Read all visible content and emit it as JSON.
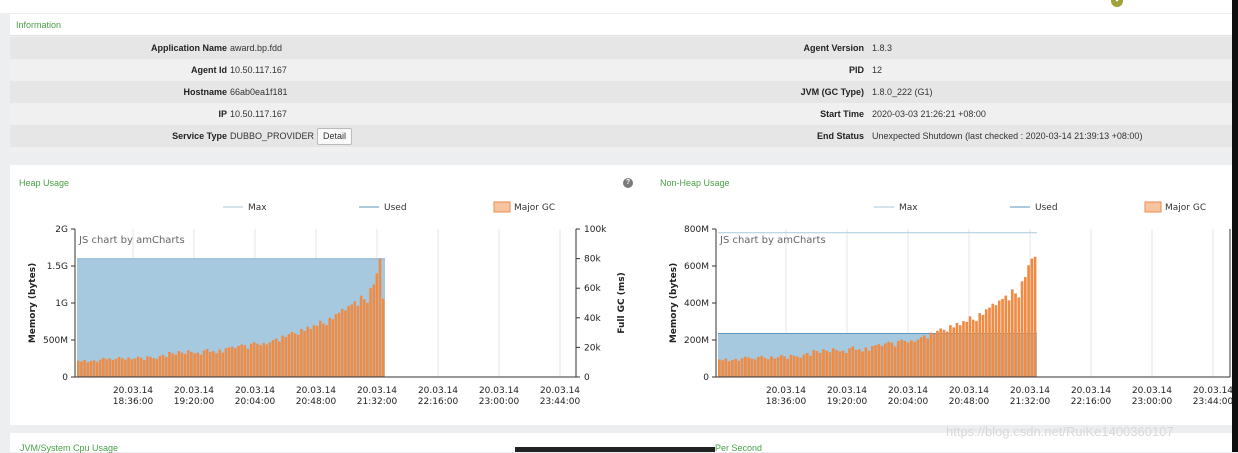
{
  "logo_glyph": "•",
  "information": {
    "title": "Information",
    "left": [
      {
        "label": "Application Name",
        "value": "award.bp.fdd"
      },
      {
        "label": "Agent Id",
        "value": "10.50.117.167"
      },
      {
        "label": "Hostname",
        "value": "66ab0ea1f181"
      },
      {
        "label": "IP",
        "value": "10.50.117.167"
      },
      {
        "label": "Service Type",
        "value": "DUBBO_PROVIDER"
      }
    ],
    "right": [
      {
        "label": "Agent Version",
        "value": "1.8.3"
      },
      {
        "label": "PID",
        "value": "12"
      },
      {
        "label": "JVM (GC Type)",
        "value": "1.8.0_222 (G1)"
      },
      {
        "label": "Start Time",
        "value": "2020-03-03 21:26:21 +08:00"
      },
      {
        "label": "End Status",
        "value": "Unexpected Shutdown (last checked : 2020-03-14 21:39:13 +08:00)"
      }
    ],
    "detail_button": "Detail"
  },
  "help_glyph": "?",
  "chart_data": [
    {
      "type": "area",
      "title": "Heap Usage",
      "watermark": "JS chart by amCharts",
      "legend": [
        "Max",
        "Used",
        "Major GC"
      ],
      "ylabel": "Memory (bytes)",
      "y2label": "Full GC (ms)",
      "yticks": [
        "0",
        "500M",
        "1G",
        "1.5G",
        "2G"
      ],
      "y2ticks": [
        "0",
        "20k",
        "40k",
        "60k",
        "80k",
        "100k"
      ],
      "xticks": [
        [
          "20.03.14",
          "18:36:00"
        ],
        [
          "20.03.14",
          "19:20:00"
        ],
        [
          "20.03.14",
          "20:04:00"
        ],
        [
          "20.03.14",
          "20:48:00"
        ],
        [
          "20.03.14",
          "21:32:00"
        ],
        [
          "20.03.14",
          "22:16:00"
        ],
        [
          "20.03.14",
          "23:00:00"
        ],
        [
          "20.03.14",
          "23:44:00"
        ]
      ],
      "ylim": [
        0,
        2000
      ],
      "max_mb": 1600,
      "used_mb": 1600,
      "series": [
        {
          "name": "Major GC",
          "values": [
            220,
            210,
            230,
            200,
            215,
            225,
            205,
            235,
            260,
            240,
            250,
            230,
            245,
            270,
            255,
            235,
            265,
            240,
            250,
            275,
            260,
            230,
            280,
            270,
            255,
            245,
            285,
            300,
            270,
            340,
            320,
            300,
            350,
            330,
            310,
            360,
            340,
            320,
            330,
            300,
            360,
            380,
            340,
            350,
            320,
            370,
            330,
            390,
            400,
            410,
            390,
            420,
            440,
            430,
            380,
            450,
            470,
            450,
            430,
            460,
            440,
            470,
            500,
            520,
            480,
            560,
            540,
            580,
            610,
            590,
            570,
            650,
            620,
            680,
            650,
            700,
            690,
            760,
            720,
            700,
            800,
            780,
            850,
            870,
            920,
            900,
            960,
            980,
            1020,
            960,
            1100,
            1050,
            1000,
            1200,
            1250,
            1400,
            1600,
            1060
          ]
        }
      ]
    },
    {
      "type": "area",
      "title": "Non-Heap Usage",
      "watermark": "JS chart by amCharts",
      "legend": [
        "Max",
        "Used",
        "Major GC"
      ],
      "ylabel": "Memory (bytes)",
      "yticks": [
        "0",
        "200M",
        "400M",
        "600M",
        "800M"
      ],
      "xticks": [
        [
          "20.03.14",
          "18:36:00"
        ],
        [
          "20.03.14",
          "19:20:00"
        ],
        [
          "20.03.14",
          "20:04:00"
        ],
        [
          "20.03.14",
          "20:48:00"
        ],
        [
          "20.03.14",
          "21:32:00"
        ],
        [
          "20.03.14",
          "22:16:00"
        ],
        [
          "20.03.14",
          "23:00:00"
        ],
        [
          "20.03.14",
          "23:44:00"
        ]
      ],
      "ylim": [
        0,
        800
      ],
      "max_mb": 780,
      "used_mb": 235,
      "series": [
        {
          "name": "Major GC",
          "values": [
            95,
            90,
            100,
            85,
            92,
            98,
            88,
            102,
            110,
            105,
            100,
            95,
            108,
            115,
            104,
            96,
            112,
            100,
            106,
            118,
            112,
            98,
            120,
            115,
            110,
            104,
            122,
            130,
            115,
            145,
            140,
            130,
            150,
            142,
            134,
            155,
            146,
            138,
            142,
            130,
            155,
            165,
            146,
            150,
            138,
            160,
            142,
            168,
            172,
            178,
            168,
            182,
            190,
            186,
            165,
            195,
            202,
            195,
            186,
            198,
            190,
            202,
            215,
            225,
            208,
            240,
            232,
            250,
            262,
            255,
            246,
            280,
            268,
            292,
            280,
            302,
            298,
            328,
            310,
            302,
            345,
            336,
            366,
            375,
            396,
            388,
            413,
            422,
            440,
            414,
            474,
            452,
            430,
            517,
            540,
            604,
            640,
            650
          ]
        }
      ]
    }
  ],
  "bottom": {
    "left_title": "JVM/System Cpu Usage",
    "right_title": "Per Second"
  },
  "watermark_text": "https://blog.csdn.net/RuiKe1400360107"
}
